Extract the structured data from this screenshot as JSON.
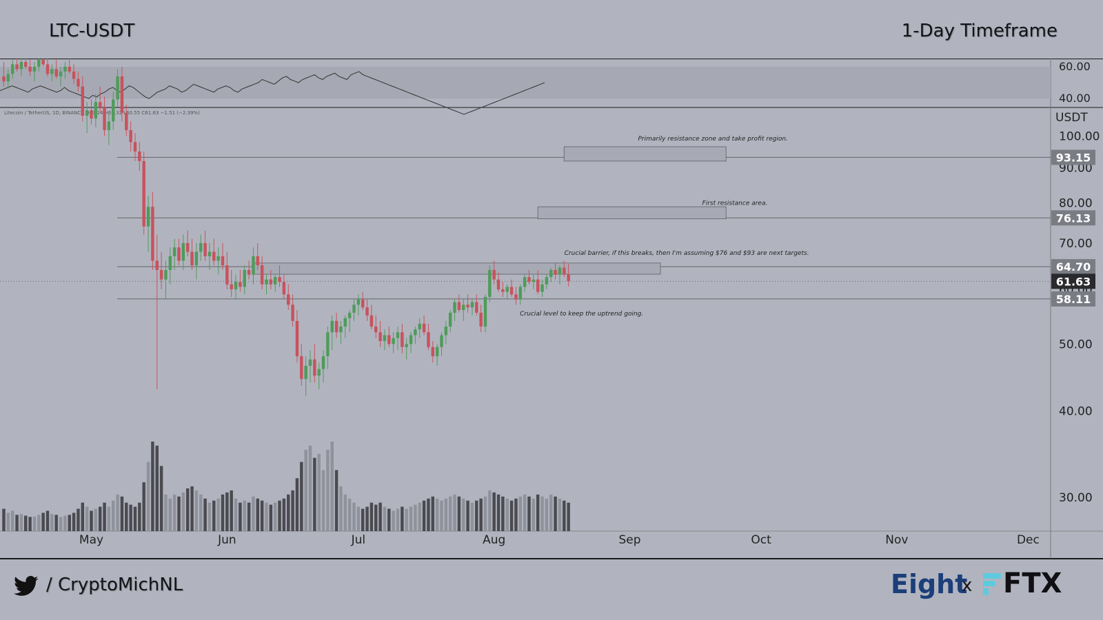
{
  "header": {
    "pair": "LTC-USDT",
    "timeframe": "1-Day Timeframe"
  },
  "footer": {
    "handle": "/ CryptoMichNL",
    "brand": "Eight",
    "x_sep": "x",
    "exchange": "FTX"
  },
  "colors": {
    "bg": "#b1b4bf",
    "bull": "#4f9b5a",
    "bear": "#c8525d",
    "vol_dark": "#4a4a50",
    "vol_light": "#8f929b",
    "line": "#1a1a1a"
  },
  "chart_data": {
    "type": "candlestick",
    "symbol_info": "Litecoin / TetherUS, 1D, BINANCE  O63.14  H65.32  L60.55  C61.63  −1.51 (−2.39%)",
    "y_axis": {
      "unit_label": "USDT",
      "ticks": [
        "30.00",
        "40.00",
        "50.00",
        "60.00",
        "70.00",
        "80.00",
        "90.00",
        "100.00"
      ],
      "scale": "log"
    },
    "x_axis": {
      "ticks": [
        "May",
        "Jun",
        "Jul",
        "Aug",
        "Sep",
        "Oct",
        "Nov",
        "Dec"
      ]
    },
    "rsi": {
      "tick_labels": [
        "60.00",
        "40.00"
      ],
      "values": [
        45,
        46,
        47,
        48,
        47,
        46,
        45,
        44,
        46,
        47,
        48,
        47,
        46,
        45,
        44,
        45,
        47,
        45,
        44,
        43,
        42,
        41,
        40,
        42,
        41,
        43,
        44,
        46,
        47,
        45,
        44,
        46,
        48,
        47,
        45,
        43,
        41,
        40,
        42,
        44,
        45,
        46,
        48,
        47,
        46,
        44,
        45,
        47,
        49,
        48,
        47,
        46,
        45,
        44,
        46,
        47,
        48,
        47,
        45,
        44,
        46,
        47,
        48,
        49,
        50,
        52,
        51,
        50,
        49,
        51,
        53,
        54,
        52,
        51,
        50,
        52,
        53,
        54,
        55,
        53,
        52,
        54,
        55,
        56,
        54,
        53,
        52,
        55,
        56,
        57,
        55,
        54,
        53,
        52,
        51,
        50,
        49,
        48,
        47,
        46,
        45,
        44,
        43,
        42,
        41,
        40,
        39,
        38,
        37,
        36,
        35,
        34,
        33,
        32,
        31,
        30,
        31,
        32,
        33,
        34,
        35,
        36,
        37,
        38,
        39,
        40,
        41,
        42,
        43,
        44,
        45,
        46,
        47,
        48,
        49,
        50
      ]
    },
    "price_labels": [
      {
        "value": 93.15,
        "label": "93.15",
        "style": "level"
      },
      {
        "value": 76.13,
        "label": "76.13",
        "style": "level"
      },
      {
        "value": 64.7,
        "label": "64.70",
        "style": "level"
      },
      {
        "value": 61.63,
        "label": "61.63",
        "style": "last"
      },
      {
        "value": 58.11,
        "label": "58.11",
        "style": "level"
      }
    ],
    "annotations": [
      {
        "text": "Primarily resistance zone and take profit region.",
        "price": 98.5,
        "date": "2022-09-20"
      },
      {
        "text": "First resistance area.",
        "price": 79.5,
        "date": "2022-09-25"
      },
      {
        "text": "Crucial barrier, if this breaks, then I'm assuming $76 and $93 are next targets.",
        "price": 67.3,
        "date": "2022-09-14"
      },
      {
        "text": "Crucial level to keep the uptrend going.",
        "price": 55.0,
        "date": "2022-08-21"
      }
    ],
    "zones": [
      {
        "date_from": "2022-08-17",
        "date_to": "2022-09-23",
        "price_low": 92.0,
        "price_high": 96.5
      },
      {
        "date_from": "2022-08-11",
        "date_to": "2022-09-23",
        "price_low": 75.9,
        "price_high": 79.0
      },
      {
        "date_from": "2022-06-07",
        "date_to": "2022-09-08",
        "price_low": 63.1,
        "price_high": 65.5
      }
    ],
    "candles": [
      [
        122.0,
        128.0,
        118.0,
        120.0,
        55
      ],
      [
        120.0,
        125.0,
        117.0,
        123.0,
        45
      ],
      [
        123.0,
        129.0,
        121.0,
        127.0,
        50
      ],
      [
        127.0,
        131.0,
        124.0,
        125.0,
        40
      ],
      [
        125.0,
        130.0,
        122.0,
        128.0,
        42
      ],
      [
        128.0,
        132.0,
        125.0,
        126.0,
        38
      ],
      [
        126.0,
        129.0,
        122.0,
        124.0,
        35
      ],
      [
        124.0,
        128.0,
        120.0,
        126.0,
        36
      ],
      [
        126.0,
        131.0,
        124.0,
        129.0,
        40
      ],
      [
        129.0,
        133.0,
        126.0,
        127.0,
        45
      ],
      [
        127.0,
        130.0,
        122.0,
        123.0,
        50
      ],
      [
        123.0,
        127.0,
        120.0,
        125.0,
        42
      ],
      [
        125.0,
        129.0,
        121.0,
        122.0,
        40
      ],
      [
        122.0,
        126.0,
        118.0,
        124.0,
        35
      ],
      [
        124.0,
        128.0,
        121.0,
        126.0,
        38
      ],
      [
        126.0,
        130.0,
        123.0,
        124.0,
        40
      ],
      [
        124.0,
        127.0,
        119.0,
        121.0,
        45
      ],
      [
        121.0,
        124.0,
        116.0,
        118.0,
        55
      ],
      [
        118.0,
        122.0,
        105.0,
        107.0,
        70
      ],
      [
        107.0,
        112.0,
        101.0,
        109.0,
        60
      ],
      [
        109.0,
        113.0,
        104.0,
        106.0,
        50
      ],
      [
        106.0,
        115.0,
        103.0,
        112.0,
        55
      ],
      [
        112.0,
        118.0,
        108.0,
        110.0,
        60
      ],
      [
        110.0,
        114.0,
        100.0,
        102.0,
        70
      ],
      [
        102.0,
        108.0,
        97.0,
        105.0,
        60
      ],
      [
        105.0,
        116.0,
        102.0,
        113.0,
        75
      ],
      [
        113.0,
        125.0,
        110.0,
        122.0,
        90
      ],
      [
        122.0,
        126.0,
        105.0,
        108.0,
        85
      ],
      [
        108.0,
        111.0,
        100.0,
        102.0,
        70
      ],
      [
        102.0,
        105.0,
        95.0,
        98.0,
        65
      ],
      [
        98.0,
        101.0,
        92.0,
        95.0,
        60
      ],
      [
        95.0,
        98.0,
        89.0,
        92.0,
        70
      ],
      [
        92.0,
        95.0,
        72.0,
        74.0,
        120
      ],
      [
        74.0,
        82.0,
        68.0,
        79.0,
        170
      ],
      [
        79.0,
        83.0,
        64.0,
        66.0,
        220
      ],
      [
        66.0,
        72.0,
        43.0,
        64.0,
        210
      ],
      [
        64.0,
        68.0,
        60.0,
        62.0,
        160
      ],
      [
        62.0,
        66.0,
        58.0,
        64.0,
        90
      ],
      [
        64.0,
        69.0,
        61.0,
        67.0,
        80
      ],
      [
        67.0,
        71.0,
        64.0,
        69.0,
        90
      ],
      [
        69.0,
        71.0,
        65.0,
        66.0,
        85
      ],
      [
        66.0,
        72.0,
        64.0,
        70.0,
        95
      ],
      [
        70.0,
        73.0,
        67.0,
        68.0,
        105
      ],
      [
        68.0,
        71.0,
        64.0,
        65.0,
        110
      ],
      [
        65.0,
        70.0,
        62.0,
        68.0,
        100
      ],
      [
        68.0,
        72.0,
        66.0,
        70.0,
        90
      ],
      [
        70.0,
        73.0,
        66.0,
        67.0,
        80
      ],
      [
        67.0,
        70.0,
        64.0,
        68.0,
        70
      ],
      [
        68.0,
        71.0,
        65.0,
        66.0,
        75
      ],
      [
        66.0,
        69.0,
        63.0,
        67.0,
        80
      ],
      [
        67.0,
        70.0,
        64.0,
        65.0,
        90
      ],
      [
        65.0,
        68.0,
        60.0,
        61.0,
        95
      ],
      [
        61.0,
        64.0,
        58.5,
        60.0,
        100
      ],
      [
        60.0,
        63.0,
        58.0,
        61.5,
        80
      ],
      [
        61.5,
        64.0,
        59.5,
        60.5,
        70
      ],
      [
        60.5,
        65.0,
        59.0,
        64.0,
        75
      ],
      [
        64.0,
        66.0,
        62.0,
        63.0,
        70
      ],
      [
        63.0,
        69.0,
        61.0,
        67.0,
        85
      ],
      [
        67.0,
        70.0,
        64.0,
        65.0,
        80
      ],
      [
        65.0,
        67.0,
        60.0,
        61.0,
        75
      ],
      [
        61.0,
        63.0,
        59.0,
        62.0,
        70
      ],
      [
        62.0,
        64.0,
        60.0,
        61.0,
        65
      ],
      [
        61.0,
        63.0,
        59.5,
        62.5,
        70
      ],
      [
        62.5,
        65.0,
        60.5,
        61.5,
        75
      ],
      [
        61.5,
        63.0,
        58.0,
        59.0,
        80
      ],
      [
        59.0,
        61.0,
        56.0,
        57.0,
        90
      ],
      [
        57.0,
        59.0,
        53.0,
        54.0,
        100
      ],
      [
        54.0,
        56.0,
        47.0,
        48.0,
        130
      ],
      [
        48.0,
        50.0,
        43.5,
        44.5,
        170
      ],
      [
        44.5,
        48.0,
        42.0,
        46.5,
        200
      ],
      [
        46.5,
        49.0,
        44.0,
        47.5,
        210
      ],
      [
        47.5,
        50.0,
        44.0,
        45.0,
        180
      ],
      [
        45.0,
        47.0,
        43.0,
        46.0,
        190
      ],
      [
        46.0,
        49.0,
        44.0,
        48.0,
        150
      ],
      [
        48.0,
        53.0,
        46.0,
        52.0,
        200
      ],
      [
        52.0,
        55.0,
        49.0,
        54.0,
        220
      ],
      [
        54.0,
        55.5,
        51.0,
        52.0,
        150
      ],
      [
        52.0,
        54.0,
        50.0,
        53.0,
        110
      ],
      [
        53.0,
        55.0,
        51.0,
        54.5,
        90
      ],
      [
        54.5,
        56.0,
        52.0,
        55.5,
        80
      ],
      [
        55.5,
        58.0,
        54.0,
        57.0,
        70
      ],
      [
        57.0,
        59.0,
        55.0,
        58.0,
        60
      ],
      [
        58.0,
        59.5,
        56.0,
        56.5,
        55
      ],
      [
        56.5,
        58.0,
        54.0,
        55.0,
        60
      ],
      [
        55.0,
        57.0,
        52.5,
        53.0,
        70
      ],
      [
        53.0,
        55.0,
        51.0,
        52.0,
        65
      ],
      [
        52.0,
        54.0,
        49.5,
        50.5,
        70
      ],
      [
        50.5,
        52.5,
        49.0,
        51.5,
        60
      ],
      [
        51.5,
        53.0,
        49.5,
        50.0,
        55
      ],
      [
        50.0,
        52.0,
        48.5,
        51.0,
        50
      ],
      [
        51.0,
        53.0,
        49.0,
        52.0,
        55
      ],
      [
        52.0,
        53.5,
        48.5,
        49.5,
        60
      ],
      [
        49.5,
        51.0,
        47.5,
        50.0,
        55
      ],
      [
        50.0,
        52.0,
        48.5,
        51.5,
        60
      ],
      [
        51.5,
        53.0,
        50.0,
        52.5,
        65
      ],
      [
        52.5,
        54.5,
        51.0,
        53.5,
        70
      ],
      [
        53.5,
        55.0,
        51.5,
        52.0,
        75
      ],
      [
        52.0,
        53.5,
        49.0,
        49.5,
        80
      ],
      [
        49.5,
        50.5,
        47.0,
        48.0,
        85
      ],
      [
        48.0,
        50.0,
        46.5,
        49.5,
        80
      ],
      [
        49.5,
        52.0,
        48.0,
        51.5,
        75
      ],
      [
        51.5,
        54.0,
        50.0,
        53.0,
        80
      ],
      [
        53.0,
        56.0,
        52.0,
        55.5,
        85
      ],
      [
        55.5,
        58.0,
        54.0,
        57.5,
        90
      ],
      [
        57.5,
        59.0,
        55.5,
        56.0,
        85
      ],
      [
        56.0,
        58.0,
        54.0,
        57.0,
        80
      ],
      [
        57.0,
        59.0,
        55.5,
        56.5,
        75
      ],
      [
        56.5,
        58.0,
        55.0,
        57.5,
        70
      ],
      [
        57.5,
        59.0,
        55.0,
        55.5,
        75
      ],
      [
        55.5,
        57.0,
        52.0,
        53.0,
        80
      ],
      [
        53.0,
        59.0,
        52.0,
        58.5,
        85
      ],
      [
        58.5,
        65.0,
        57.5,
        64.0,
        100
      ],
      [
        64.0,
        66.0,
        61.0,
        62.0,
        95
      ],
      [
        62.0,
        63.5,
        59.5,
        60.0,
        90
      ],
      [
        60.0,
        61.5,
        58.5,
        59.5,
        85
      ],
      [
        59.5,
        61.0,
        58.0,
        60.5,
        80
      ],
      [
        60.5,
        62.0,
        58.5,
        59.0,
        75
      ],
      [
        59.0,
        60.5,
        57.0,
        58.0,
        80
      ],
      [
        58.0,
        61.0,
        57.0,
        60.5,
        85
      ],
      [
        60.5,
        63.0,
        59.5,
        62.5,
        90
      ],
      [
        62.5,
        64.0,
        61.0,
        61.5,
        85
      ],
      [
        61.5,
        63.0,
        60.0,
        62.0,
        80
      ],
      [
        62.0,
        64.0,
        59.0,
        59.5,
        90
      ],
      [
        59.5,
        62.0,
        58.5,
        61.0,
        85
      ],
      [
        61.0,
        63.0,
        60.0,
        62.5,
        80
      ],
      [
        62.5,
        64.5,
        61.5,
        64.0,
        90
      ],
      [
        64.0,
        65.5,
        62.0,
        63.0,
        85
      ],
      [
        63.0,
        65.0,
        61.0,
        64.5,
        80
      ],
      [
        64.5,
        66.0,
        62.5,
        63.14,
        75
      ],
      [
        63.14,
        65.32,
        60.55,
        61.63,
        70
      ]
    ]
  }
}
